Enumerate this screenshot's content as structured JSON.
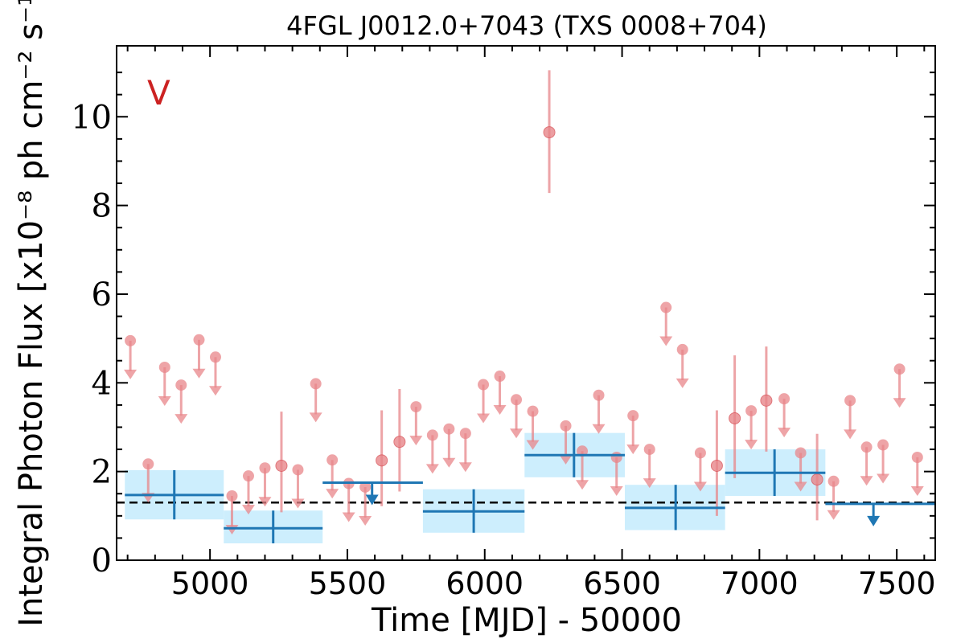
{
  "chart_data": {
    "type": "scatter",
    "title": "4FGL J0012.0+7043 (TXS 0008+704)",
    "xlabel": "Time [MJD] - 50000",
    "ylabel": "Integral Photon Flux [x10⁻⁸ ph cm⁻² s⁻¹]",
    "xlim": [
      4660,
      7640
    ],
    "ylim": [
      0,
      11.6
    ],
    "xticks": [
      5000,
      5500,
      6000,
      6500,
      7000,
      7500
    ],
    "yticks": [
      0,
      2,
      4,
      6,
      8,
      10
    ],
    "grid": false,
    "corner_label": "V",
    "colors": {
      "short_bins": "#e8868a",
      "long_bins": "#1f77b4",
      "long_band": "#cdeefd",
      "mean_line": "#000000",
      "corner_label": "#cc2222"
    },
    "mean_flux": 1.3,
    "short_bins": {
      "detections": [
        {
          "x": 5260,
          "y": 2.13,
          "lo": 1.08,
          "hi": 3.35
        },
        {
          "x": 5625,
          "y": 2.25,
          "lo": 1.22,
          "hi": 3.38
        },
        {
          "x": 5690,
          "y": 2.67,
          "lo": 1.55,
          "hi": 3.86
        },
        {
          "x": 6235,
          "y": 9.65,
          "lo": 8.28,
          "hi": 11.05
        },
        {
          "x": 6845,
          "y": 2.13,
          "lo": 1.0,
          "hi": 3.38
        },
        {
          "x": 6910,
          "y": 3.2,
          "lo": 1.85,
          "hi": 4.62
        },
        {
          "x": 7025,
          "y": 3.6,
          "lo": 2.45,
          "hi": 4.82
        },
        {
          "x": 7210,
          "y": 1.82,
          "lo": 0.9,
          "hi": 2.85
        }
      ],
      "upper_limits": [
        {
          "x": 4710,
          "y": 4.95
        },
        {
          "x": 4775,
          "y": 2.17
        },
        {
          "x": 4835,
          "y": 4.35
        },
        {
          "x": 4895,
          "y": 3.95
        },
        {
          "x": 4960,
          "y": 4.97
        },
        {
          "x": 5020,
          "y": 4.58
        },
        {
          "x": 5080,
          "y": 1.45
        },
        {
          "x": 5140,
          "y": 1.9
        },
        {
          "x": 5200,
          "y": 2.08
        },
        {
          "x": 5320,
          "y": 2.04
        },
        {
          "x": 5385,
          "y": 3.98
        },
        {
          "x": 5445,
          "y": 2.26
        },
        {
          "x": 5505,
          "y": 1.73
        },
        {
          "x": 5565,
          "y": 1.65
        },
        {
          "x": 5750,
          "y": 3.46
        },
        {
          "x": 5810,
          "y": 2.82
        },
        {
          "x": 5870,
          "y": 2.96
        },
        {
          "x": 5930,
          "y": 2.86
        },
        {
          "x": 5995,
          "y": 3.96
        },
        {
          "x": 6055,
          "y": 4.15
        },
        {
          "x": 6115,
          "y": 3.62
        },
        {
          "x": 6175,
          "y": 3.36
        },
        {
          "x": 6295,
          "y": 3.03
        },
        {
          "x": 6355,
          "y": 2.46
        },
        {
          "x": 6415,
          "y": 3.72
        },
        {
          "x": 6480,
          "y": 2.32
        },
        {
          "x": 6540,
          "y": 3.26
        },
        {
          "x": 6600,
          "y": 2.5
        },
        {
          "x": 6660,
          "y": 5.7
        },
        {
          "x": 6720,
          "y": 4.75
        },
        {
          "x": 6785,
          "y": 2.42
        },
        {
          "x": 6970,
          "y": 3.37
        },
        {
          "x": 7090,
          "y": 3.64
        },
        {
          "x": 7150,
          "y": 2.42
        },
        {
          "x": 7270,
          "y": 1.78
        },
        {
          "x": 7330,
          "y": 3.6
        },
        {
          "x": 7390,
          "y": 2.55
        },
        {
          "x": 7450,
          "y": 2.6
        },
        {
          "x": 7510,
          "y": 4.31
        },
        {
          "x": 7575,
          "y": 2.32
        }
      ]
    },
    "long_bins": {
      "detections": [
        {
          "x": 4870,
          "x0": 4690,
          "x1": 5050,
          "y": 1.47,
          "lo": 0.92,
          "hi": 2.03
        },
        {
          "x": 5230,
          "x0": 5050,
          "x1": 5410,
          "y": 0.72,
          "lo": 0.38,
          "hi": 1.12
        },
        {
          "x": 5960,
          "x0": 5775,
          "x1": 6145,
          "y": 1.1,
          "lo": 0.62,
          "hi": 1.6
        },
        {
          "x": 6325,
          "x0": 6145,
          "x1": 6510,
          "y": 2.37,
          "lo": 1.87,
          "hi": 2.87
        },
        {
          "x": 6695,
          "x0": 6510,
          "x1": 6875,
          "y": 1.18,
          "lo": 0.68,
          "hi": 1.7
        },
        {
          "x": 7055,
          "x0": 6875,
          "x1": 7240,
          "y": 1.97,
          "lo": 1.45,
          "hi": 2.5
        }
      ],
      "upper_limits": [
        {
          "x": 5590,
          "x0": 5410,
          "x1": 5775,
          "y": 1.75
        },
        {
          "x": 7415,
          "x0": 7240,
          "x1": 7640,
          "y": 1.27
        }
      ]
    }
  }
}
